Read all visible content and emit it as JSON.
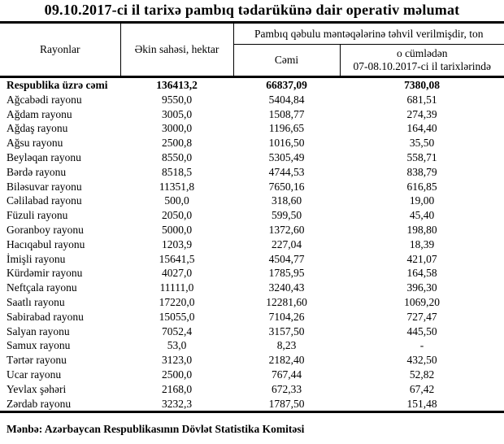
{
  "title": "09.10.2017-ci il tarixə pambıq tədarükünə dair operativ məlumat",
  "table": {
    "headers": {
      "rayonlar": "Rayonlar",
      "ekin_sahesi": "Əkin sahəsi, hektar",
      "group": "Pambıq qəbulu məntəqələrinə təhvil verilmişdir, ton",
      "cemi": "Cəmi",
      "o_cumleden_line1": "o cümlədən",
      "o_cumleden_line2": "07-08.10.2017-ci il tarixlərində"
    },
    "rows": [
      {
        "name": "Respublika üzrə cəmi",
        "ekin_sahesi": "136413,2",
        "cemi": "66837,09",
        "son_tarixler": "7380,08",
        "bold": true
      },
      {
        "name": "Ağcabədi rayonu",
        "ekin_sahesi": "9550,0",
        "cemi": "5404,84",
        "son_tarixler": "681,51"
      },
      {
        "name": "Ağdam rayonu",
        "ekin_sahesi": "3005,0",
        "cemi": "1508,77",
        "son_tarixler": "274,39"
      },
      {
        "name": "Ağdaş rayonu",
        "ekin_sahesi": "3000,0",
        "cemi": "1196,65",
        "son_tarixler": "164,40"
      },
      {
        "name": "Ağsu rayonu",
        "ekin_sahesi": "2500,8",
        "cemi": "1016,50",
        "son_tarixler": "35,50"
      },
      {
        "name": "Beyləqan rayonu",
        "ekin_sahesi": "8550,0",
        "cemi": "5305,49",
        "son_tarixler": "558,71"
      },
      {
        "name": "Bərdə rayonu",
        "ekin_sahesi": "8518,5",
        "cemi": "4744,53",
        "son_tarixler": "838,79"
      },
      {
        "name": "Biləsuvar rayonu",
        "ekin_sahesi": "11351,8",
        "cemi": "7650,16",
        "son_tarixler": "616,85"
      },
      {
        "name": "Cəlilabad rayonu",
        "ekin_sahesi": "500,0",
        "cemi": "318,60",
        "son_tarixler": "19,00"
      },
      {
        "name": "Füzuli rayonu",
        "ekin_sahesi": "2050,0",
        "cemi": "599,50",
        "son_tarixler": "45,40"
      },
      {
        "name": "Goranboy rayonu",
        "ekin_sahesi": "5000,0",
        "cemi": "1372,60",
        "son_tarixler": "198,80"
      },
      {
        "name": "Hacıqabul rayonu",
        "ekin_sahesi": "1203,9",
        "cemi": "227,04",
        "son_tarixler": "18,39"
      },
      {
        "name": "İmişli rayonu",
        "ekin_sahesi": "15641,5",
        "cemi": "4504,77",
        "son_tarixler": "421,07"
      },
      {
        "name": "Kürdəmir rayonu",
        "ekin_sahesi": "4027,0",
        "cemi": "1785,95",
        "son_tarixler": "164,58"
      },
      {
        "name": "Neftçala rayonu",
        "ekin_sahesi": "11111,0",
        "cemi": "3240,43",
        "son_tarixler": "396,30"
      },
      {
        "name": "Saatlı rayonu",
        "ekin_sahesi": "17220,0",
        "cemi": "12281,60",
        "son_tarixler": "1069,20"
      },
      {
        "name": "Sabirabad rayonu",
        "ekin_sahesi": "15055,0",
        "cemi": "7104,26",
        "son_tarixler": "727,47"
      },
      {
        "name": "Salyan rayonu",
        "ekin_sahesi": "7052,4",
        "cemi": "3157,50",
        "son_tarixler": "445,50"
      },
      {
        "name": "Samux rayonu",
        "ekin_sahesi": "53,0",
        "cemi": "8,23",
        "son_tarixler": "-"
      },
      {
        "name": "Tərtər rayonu",
        "ekin_sahesi": "3123,0",
        "cemi": "2182,40",
        "son_tarixler": "432,50"
      },
      {
        "name": "Ucar rayonu",
        "ekin_sahesi": "2500,0",
        "cemi": "767,44",
        "son_tarixler": "52,82"
      },
      {
        "name": "Yevlax şəhəri",
        "ekin_sahesi": "2168,0",
        "cemi": "672,33",
        "son_tarixler": "67,42"
      },
      {
        "name": "Zərdab rayonu",
        "ekin_sahesi": "3232,3",
        "cemi": "1787,50",
        "son_tarixler": "151,48"
      }
    ]
  },
  "footer": "Mənbə: Azərbaycan Respublikasının Dövlət Statistika Komitəsi"
}
